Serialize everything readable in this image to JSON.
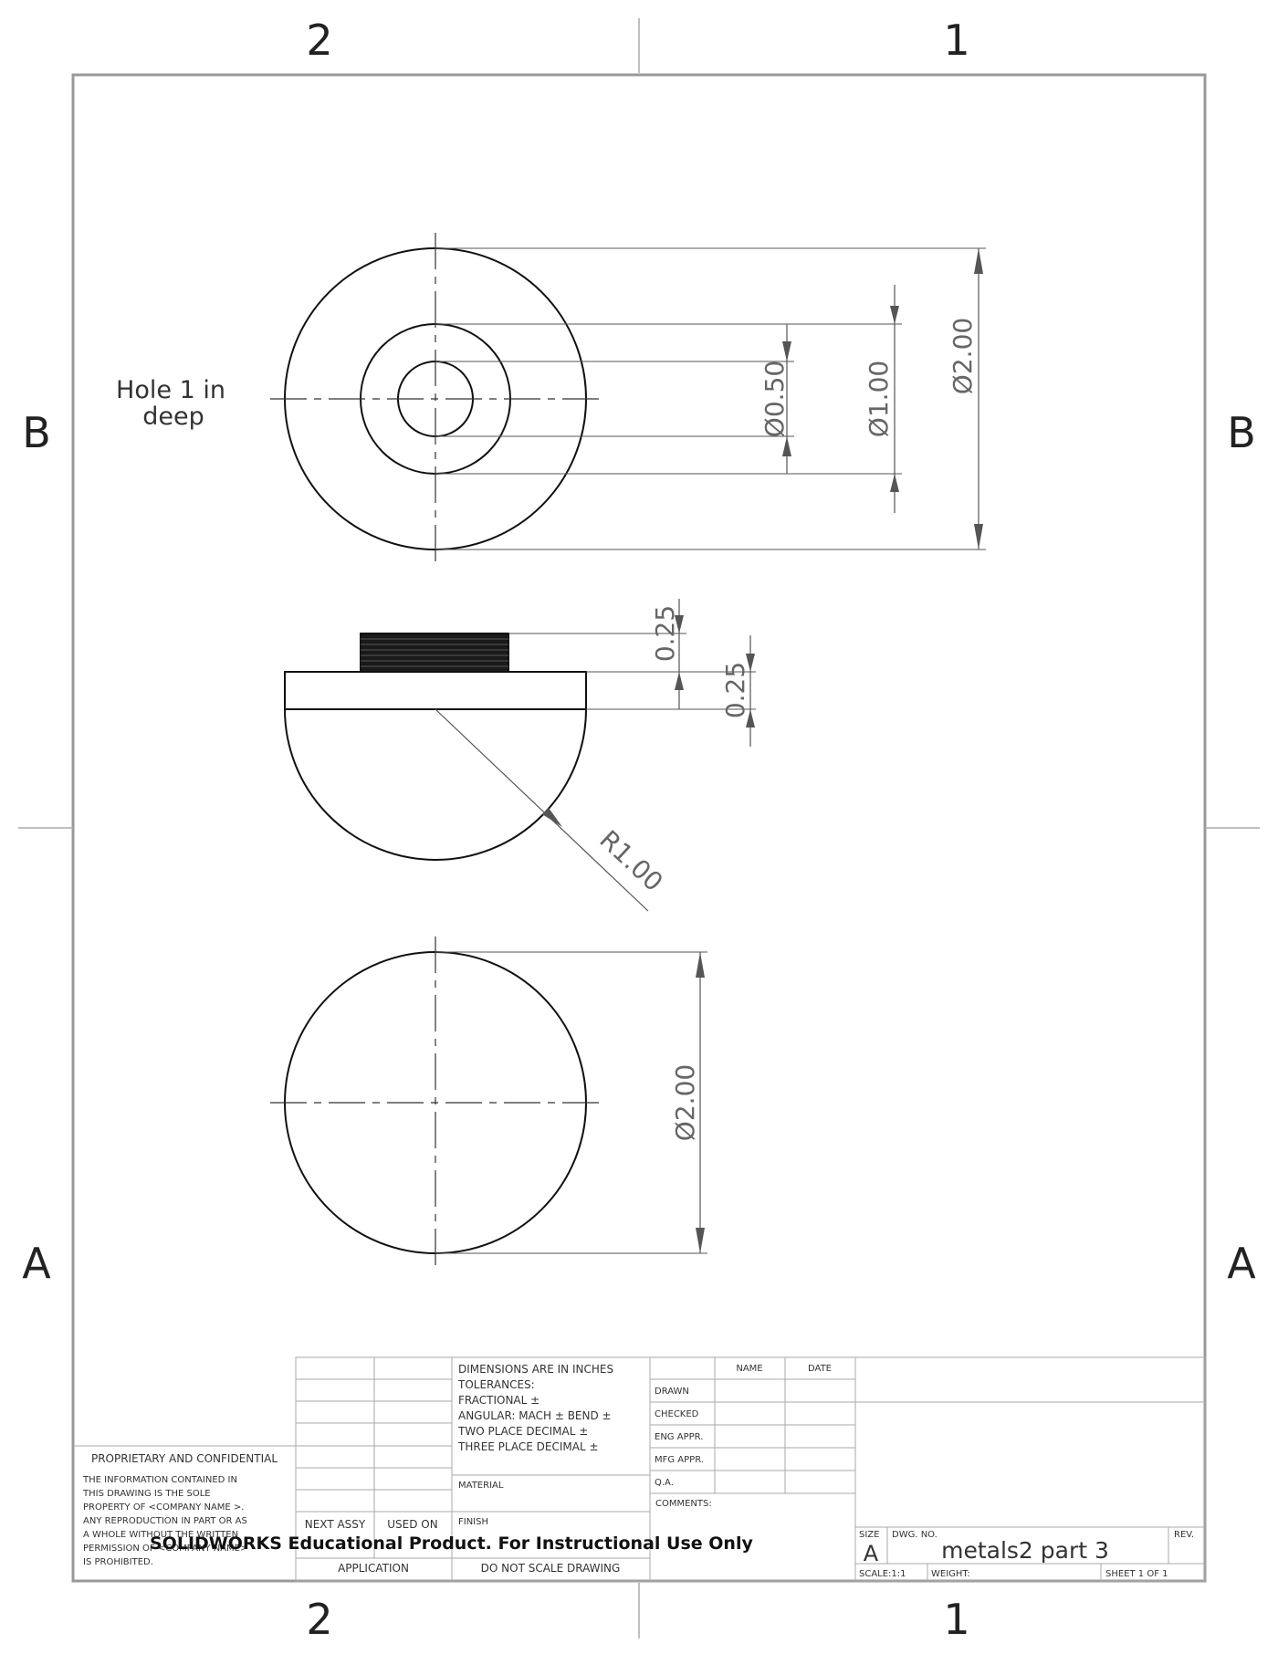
{
  "zones": {
    "col_left": "2",
    "col_right": "1",
    "row_upper": "B",
    "row_lower": "A"
  },
  "views": {
    "top": {
      "note_line1": "Hole 1 in",
      "note_line2": "deep",
      "dim_inner": "Ø0.50",
      "dim_middle": "Ø1.00",
      "dim_outer": "Ø2.00"
    },
    "side": {
      "dim_thread": "0.25",
      "dim_flange": "0.25",
      "dim_radius": "R1.00"
    },
    "bottom": {
      "dim_diameter": "Ø2.00"
    }
  },
  "title_block": {
    "proprietary_title": "PROPRIETARY AND CONFIDENTIAL",
    "proprietary_lines": [
      "THE INFORMATION CONTAINED IN",
      "THIS DRAWING IS THE SOLE",
      "PROPERTY OF <COMPANY NAME >.",
      "ANY REPRODUCTION IN PART OR AS",
      "A WHOLE WITHOUT THE WRITTEN",
      "PERMISSION OF <COMPANY NAME>",
      "IS PROHIBITED."
    ],
    "next_assy": "NEXT ASSY",
    "used_on": "USED ON",
    "application": "APPLICATION",
    "tolerance_lines": [
      "DIMENSIONS ARE IN INCHES",
      "TOLERANCES:",
      "FRACTIONAL ±",
      "ANGULAR: MACH ±    BEND ±",
      "TWO PLACE DECIMAL    ±",
      "THREE PLACE DECIMAL  ±"
    ],
    "material": "MATERIAL",
    "finish": "FINISH",
    "do_not_scale": "DO NOT SCALE DRAWING",
    "col_name": "NAME",
    "col_date": "DATE",
    "rows": [
      "DRAWN",
      "CHECKED",
      "ENG APPR.",
      "MFG APPR.",
      "Q.A."
    ],
    "comments": "COMMENTS:",
    "size_label": "SIZE",
    "size_value": "A",
    "dwg_no_label": "DWG.  NO.",
    "dwg_no_value": "metals2 part 3",
    "rev_label": "REV.",
    "scale": "SCALE:1:1",
    "weight": "WEIGHT:",
    "sheet": "SHEET 1 OF 1",
    "watermark": "SOLIDWORKS Educational Product. For Instructional Use Only"
  }
}
